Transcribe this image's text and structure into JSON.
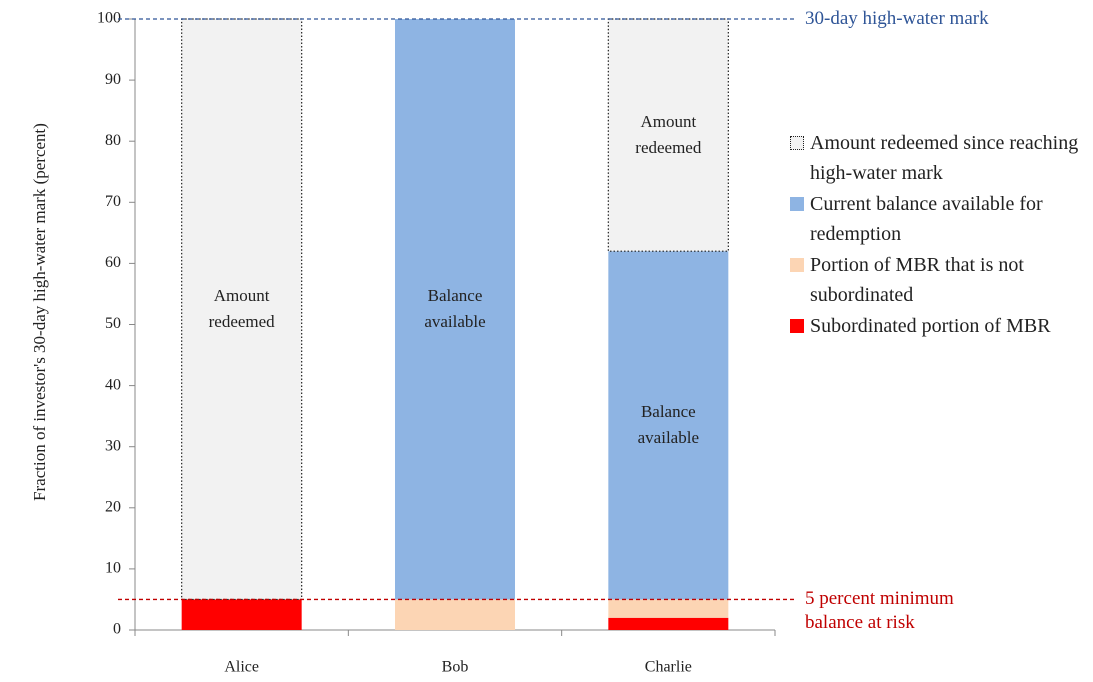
{
  "chart_data": {
    "type": "stacked_bar",
    "y_label": "Fraction of investor's 30-day high-water mark (percent)",
    "categories": [
      "Alice",
      "Bob",
      "Charlie"
    ],
    "series": [
      {
        "name": "Subordinated portion of MBR",
        "color": "#ff0000",
        "values": [
          5,
          0,
          2
        ],
        "labels": [
          null,
          null,
          null
        ]
      },
      {
        "name": "Portion of MBR that is not subordinated",
        "color": "#fcd5b4",
        "values": [
          0,
          5,
          3
        ],
        "labels": [
          null,
          null,
          null
        ]
      },
      {
        "name": "Current balance available for redemption",
        "color": "#8eb4e3",
        "values": [
          0,
          95,
          57
        ],
        "labels": [
          null,
          "Balance available",
          "Balance available"
        ]
      },
      {
        "name": "Amount redeemed since reaching high-water mark",
        "color": "#f2f2f2",
        "dotted": true,
        "values": [
          95,
          0,
          38
        ],
        "labels": [
          "Amount redeemed",
          null,
          "Amount redeemed"
        ]
      }
    ],
    "ylim": [
      0,
      100
    ],
    "yticks": [
      0,
      10,
      20,
      30,
      40,
      50,
      60,
      70,
      80,
      90,
      100
    ],
    "annotations": [
      {
        "text": "30-day high-water mark",
        "y": 100,
        "color": "#2f5597"
      },
      {
        "text": "5 percent minimum balance at risk",
        "y": 5,
        "color": "#c00000"
      }
    ]
  }
}
